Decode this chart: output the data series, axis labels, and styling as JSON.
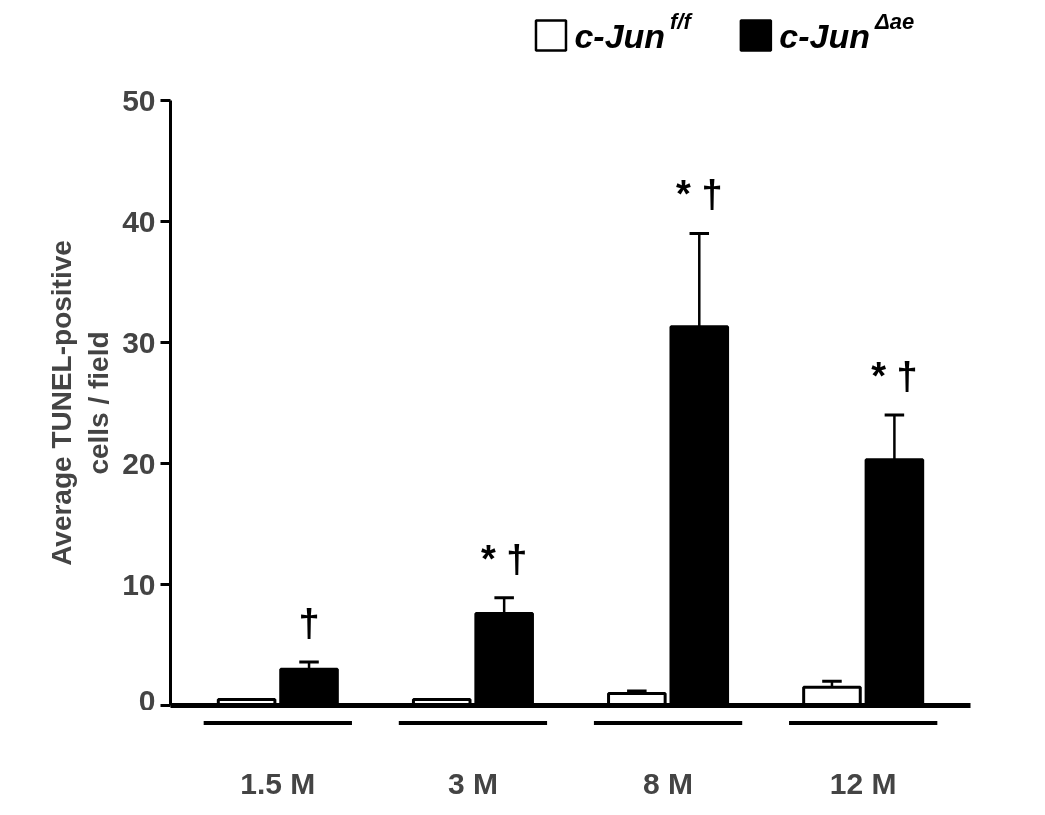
{
  "chart_data": {
    "type": "bar",
    "ylabel": "Average TUNEL-positive\ncells / field",
    "categories": [
      "1.5 M",
      "3 M",
      "8 M",
      "12 M"
    ],
    "series": [
      {
        "name": "c-Jun$^{f/f}$",
        "color": "#ffffff",
        "values": [
          0.5,
          0.5,
          1.0,
          1.5
        ],
        "errors": [
          null,
          null,
          [
            1.0,
            1.2
          ],
          [
            1.5,
            2.0
          ]
        ]
      },
      {
        "name": "c-Jun$^{Δae}$",
        "color": "#000000",
        "values": [
          3.0,
          7.6,
          31.3,
          20.3
        ],
        "errors": [
          [
            3.0,
            3.6
          ],
          [
            7.6,
            8.9
          ],
          [
            31.3,
            39.0
          ],
          [
            20.3,
            24.0
          ]
        ]
      }
    ],
    "ylim": [
      0,
      50
    ],
    "yticks": [
      0,
      10,
      20,
      30,
      40,
      50
    ],
    "annotations": [
      "†",
      "* †",
      "* †",
      "* †"
    ],
    "grid": false,
    "legend": "top right"
  }
}
